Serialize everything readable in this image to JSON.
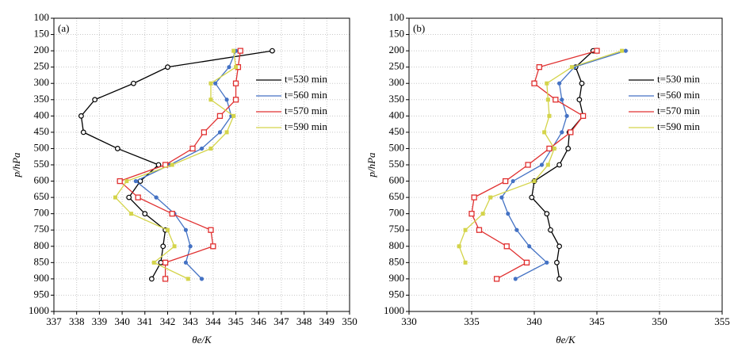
{
  "chart_data": [
    {
      "type": "line",
      "label": "(a)",
      "xlabel": "θe/K",
      "ylabel": "p/hPa",
      "y": [
        200,
        250,
        300,
        350,
        400,
        450,
        500,
        550,
        600,
        650,
        700,
        750,
        800,
        850,
        900
      ],
      "xlim": [
        337,
        350
      ],
      "xticks": [
        337,
        338,
        339,
        340,
        341,
        342,
        343,
        344,
        345,
        346,
        347,
        348,
        349,
        350
      ],
      "ylim": [
        100,
        1000
      ],
      "y_inverted": true,
      "yticks": [
        100,
        150,
        200,
        250,
        300,
        350,
        400,
        450,
        500,
        550,
        600,
        650,
        700,
        750,
        800,
        850,
        900,
        950,
        1000
      ],
      "grid": true,
      "legend": "upper right",
      "series": [
        {
          "name": "t=530 min",
          "color": "#000000",
          "marker": "open-circle",
          "values": [
            346.6,
            342.0,
            340.5,
            338.8,
            338.2,
            338.3,
            339.8,
            341.6,
            340.8,
            340.3,
            341.0,
            341.9,
            341.8,
            341.7,
            341.3
          ]
        },
        {
          "name": "t=560 min",
          "color": "#4472c4",
          "marker": "dot",
          "values": [
            345.0,
            344.7,
            344.1,
            344.6,
            344.8,
            344.3,
            343.5,
            342.1,
            340.6,
            341.5,
            342.3,
            342.8,
            343.0,
            342.8,
            343.5
          ]
        },
        {
          "name": "t=570 min",
          "color": "#e03030",
          "marker": "open-square",
          "values": [
            345.2,
            345.1,
            345.0,
            345.0,
            344.3,
            343.6,
            343.1,
            341.9,
            339.9,
            340.7,
            342.2,
            343.9,
            344.0,
            341.9,
            341.9
          ]
        },
        {
          "name": "t=590 min",
          "color": "#d4d44a",
          "marker": "square",
          "values": [
            344.9,
            345.0,
            343.9,
            343.9,
            344.9,
            344.6,
            343.9,
            342.2,
            340.2,
            339.7,
            340.4,
            342.0,
            342.3,
            341.4,
            342.9
          ]
        }
      ]
    },
    {
      "type": "line",
      "label": "(b)",
      "xlabel": "θe/K",
      "ylabel": "p/hPa",
      "y": [
        200,
        250,
        300,
        350,
        400,
        450,
        500,
        550,
        600,
        650,
        700,
        750,
        800,
        850,
        900
      ],
      "xlim": [
        330,
        355
      ],
      "xticks": [
        330,
        335,
        340,
        345,
        350,
        355
      ],
      "ylim": [
        100,
        1000
      ],
      "y_inverted": true,
      "yticks": [
        100,
        150,
        200,
        250,
        300,
        350,
        400,
        450,
        500,
        550,
        600,
        650,
        700,
        750,
        800,
        850,
        900,
        950,
        1000
      ],
      "grid": true,
      "legend": "upper right",
      "series": [
        {
          "name": "t=530 min",
          "color": "#000000",
          "marker": "open-circle",
          "values": [
            344.7,
            343.3,
            343.8,
            343.6,
            343.9,
            342.8,
            342.7,
            342.0,
            340.0,
            339.8,
            341.0,
            341.3,
            342.0,
            341.8,
            342.0
          ]
        },
        {
          "name": "t=560 min",
          "color": "#4472c4",
          "marker": "dot",
          "values": [
            347.3,
            343.2,
            342.0,
            342.2,
            342.6,
            342.2,
            341.4,
            340.6,
            338.3,
            337.4,
            337.9,
            338.6,
            339.6,
            341.0,
            338.5
          ]
        },
        {
          "name": "t=570 min",
          "color": "#e03030",
          "marker": "open-square",
          "values": [
            345.0,
            340.4,
            340.0,
            341.7,
            343.9,
            342.9,
            341.2,
            339.5,
            337.7,
            335.2,
            335.0,
            335.6,
            337.8,
            339.4,
            337.0
          ]
        },
        {
          "name": "t=590 min",
          "color": "#d4d44a",
          "marker": "square",
          "values": [
            347.0,
            343.0,
            341.0,
            341.1,
            341.2,
            340.8,
            341.6,
            341.1,
            340.0,
            336.5,
            335.9,
            334.5,
            334.0,
            334.5,
            null
          ]
        }
      ]
    }
  ]
}
